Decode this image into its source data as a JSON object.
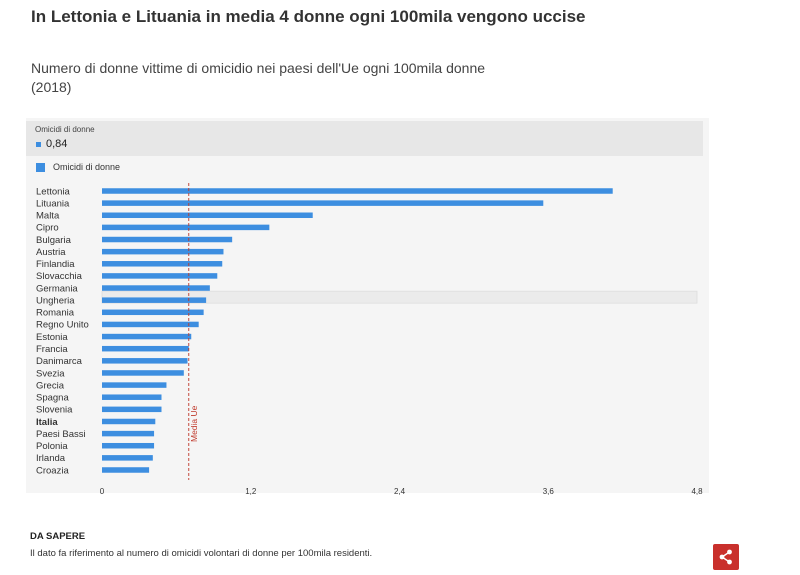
{
  "header": {
    "title": "In Lettonia e Lituania in media 4 donne ogni 100mila vengono uccise",
    "subtitle": "Numero di donne vittime di omicidio nei paesi dell'Ue ogni 100mila donne (2018)"
  },
  "tooltip": {
    "series_label": "Omicidi di donne",
    "value": "0,84"
  },
  "legend": {
    "label": "Omicidi di donne"
  },
  "footer": {
    "heading": "DA SAPERE",
    "text": "Il dato fa riferimento al numero di omicidi volontari di donne per 100mila residenti."
  },
  "colors": {
    "bar": "#3d8ee0",
    "reference_line": "#c0392b",
    "share_button": "#c9302c"
  },
  "chart_data": {
    "type": "bar",
    "orientation": "horizontal",
    "title": "In Lettonia e Lituania in media 4 donne ogni 100mila vengono uccise",
    "subtitle": "Numero di donne vittime di omicidio nei paesi dell'Ue ogni 100mila donne (2018)",
    "xlabel": "",
    "ylabel": "",
    "xlim": [
      0,
      4.8
    ],
    "ticks": [
      0,
      1.2,
      2.4,
      3.6,
      4.8
    ],
    "tick_labels": [
      "0",
      "1,2",
      "2,4",
      "3,6",
      "4,8"
    ],
    "categories": [
      "Lettonia",
      "Lituania",
      "Malta",
      "Cipro",
      "Bulgaria",
      "Austria",
      "Finlandia",
      "Slovacchia",
      "Germania",
      "Ungheria",
      "Romania",
      "Regno Unito",
      "Estonia",
      "Francia",
      "Danimarca",
      "Svezia",
      "Grecia",
      "Spagna",
      "Slovenia",
      "Italia",
      "Paesi Bassi",
      "Polonia",
      "Irlanda",
      "Croazia"
    ],
    "bold_category": "Italia",
    "highlighted_category": "Ungheria",
    "series": [
      {
        "name": "Omicidi di donne",
        "values": [
          4.12,
          3.56,
          1.7,
          1.35,
          1.05,
          0.98,
          0.97,
          0.93,
          0.87,
          0.84,
          0.82,
          0.78,
          0.72,
          0.7,
          0.69,
          0.66,
          0.52,
          0.48,
          0.48,
          0.43,
          0.42,
          0.42,
          0.41,
          0.38
        ]
      }
    ],
    "reference_line": {
      "label": "Media Ue",
      "value": 0.7
    }
  }
}
